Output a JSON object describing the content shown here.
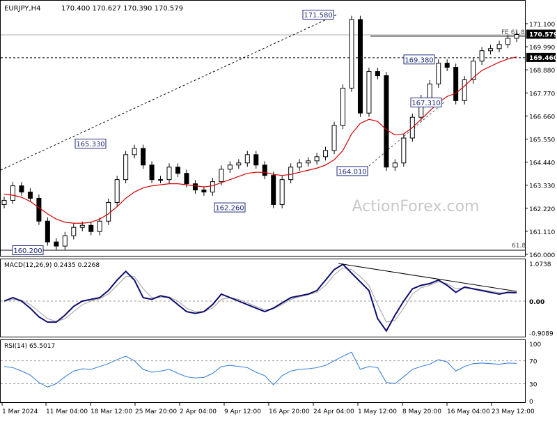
{
  "header": {
    "symbol": "EURJPY,H4",
    "ohlc": "170.400 170.627 170.390 170.579"
  },
  "watermark": "ActionForex.com",
  "colors": {
    "candle": "#000000",
    "ma": "#d40000",
    "macd": "#0b0b6e",
    "signal": "#a0a0a0",
    "rsi": "#2a79d6",
    "label_border": "#1e2a78",
    "grid_dash": "#9a9a9a"
  },
  "price_axis": [
    "171.100",
    "169.990",
    "169.460",
    "168.880",
    "167.770",
    "166.660",
    "165.550",
    "164.440",
    "163.330",
    "162.220",
    "161.110",
    "160.000"
  ],
  "current_price": "170.579",
  "level_169460": "169.460",
  "fe_label": "FE 61.8",
  "fib_label": "61.8",
  "macd_label": "MACD(12,26,9) 0.2435 0.2268",
  "macd_axis": [
    "1.0738",
    "0.00",
    "-0.9089"
  ],
  "rsi_label": "RSI(14) 65.5017",
  "rsi_axis": [
    "100",
    "70",
    "30",
    "0"
  ],
  "x_axis": [
    "1 Mar 2024",
    "11 Mar 04:00",
    "18 Mar 12:00",
    "25 Mar 20:00",
    "2 Apr 04:00",
    "9 Apr 12:00",
    "16 Apr 20:00",
    "24 Apr 04:00",
    "1 May 12:00",
    "8 May 20:00",
    "16 May 04:00",
    "23 May 12:00"
  ],
  "annotations": [
    "171.580",
    "169.380",
    "167.310",
    "165.330",
    "164.010",
    "162.260",
    "160.200"
  ],
  "chart_data": [
    {
      "type": "candlestick",
      "title": "EURJPY,H4",
      "ylim": [
        160.0,
        171.6
      ],
      "y_ticks": [
        171.1,
        169.99,
        168.88,
        167.77,
        166.66,
        165.55,
        164.44,
        163.33,
        162.22,
        161.11,
        160.0
      ],
      "x_ticks": [
        "1 Mar 2024",
        "11 Mar 04:00",
        "18 Mar 12:00",
        "25 Mar 20:00",
        "2 Apr 04:00",
        "9 Apr 12:00",
        "16 Apr 20:00",
        "24 Apr 04:00",
        "1 May 12:00",
        "8 May 20:00",
        "16 May 04:00",
        "23 May 12:00"
      ],
      "series": [
        {
          "name": "close",
          "values": [
            162.6,
            163.3,
            163.0,
            162.7,
            161.6,
            160.6,
            160.4,
            160.9,
            161.3,
            161.4,
            161.1,
            161.6,
            162.5,
            163.6,
            164.8,
            165.1,
            164.3,
            163.6,
            163.6,
            164.2,
            163.9,
            163.4,
            163.1,
            163.0,
            163.5,
            164.1,
            164.3,
            164.4,
            164.8,
            164.3,
            163.8,
            162.4,
            163.6,
            164.2,
            164.4,
            164.5,
            164.7,
            165.0,
            166.2,
            168.0,
            171.3,
            166.8,
            168.8,
            168.6,
            164.2,
            164.4,
            165.6,
            166.6,
            167.5,
            168.2,
            169.2,
            169.0,
            167.4,
            168.4,
            169.3,
            169.8,
            169.9,
            170.1,
            170.4,
            170.58
          ]
        },
        {
          "name": "moving average",
          "values": [
            162.9,
            162.85,
            162.75,
            162.55,
            162.25,
            161.95,
            161.7,
            161.55,
            161.5,
            161.5,
            161.55,
            161.7,
            161.95,
            162.3,
            162.7,
            163.0,
            163.2,
            163.3,
            163.35,
            163.4,
            163.4,
            163.35,
            163.3,
            163.25,
            163.3,
            163.45,
            163.6,
            163.75,
            163.9,
            163.95,
            163.95,
            163.85,
            163.8,
            163.85,
            163.95,
            164.05,
            164.15,
            164.3,
            164.55,
            165.0,
            165.8,
            166.3,
            166.5,
            166.4,
            166.0,
            165.75,
            165.8,
            166.1,
            166.5,
            166.9,
            167.3,
            167.6,
            167.75,
            168.1,
            168.5,
            168.85,
            169.05,
            169.25,
            169.4,
            169.5
          ]
        }
      ],
      "annotations": [
        {
          "label": "171.580",
          "value": 171.58
        },
        {
          "label": "169.380",
          "value": 169.38
        },
        {
          "label": "167.310",
          "value": 167.31
        },
        {
          "label": "165.330",
          "value": 165.33
        },
        {
          "label": "164.010",
          "value": 164.01
        },
        {
          "label": "162.260",
          "value": 162.26
        },
        {
          "label": "160.200",
          "value": 160.2
        }
      ],
      "levels": [
        {
          "value": 170.579,
          "label": "170.579"
        },
        {
          "value": 169.46,
          "label": "169.460"
        },
        {
          "value": 170.5,
          "label": "FE 61.8"
        },
        {
          "value": 160.2,
          "label": "61.8"
        }
      ]
    },
    {
      "type": "line",
      "title": "MACD(12,26,9) 0.2435 0.2268",
      "ylim": [
        -0.9089,
        1.0738
      ],
      "series": [
        {
          "name": "MACD",
          "values": [
            0.0,
            0.1,
            0.0,
            -0.2,
            -0.45,
            -0.6,
            -0.6,
            -0.4,
            -0.15,
            0.0,
            0.05,
            0.1,
            0.3,
            0.6,
            0.85,
            0.6,
            0.1,
            0.05,
            0.15,
            0.1,
            -0.1,
            -0.3,
            -0.35,
            -0.3,
            -0.1,
            0.2,
            0.1,
            0.0,
            -0.1,
            -0.2,
            -0.3,
            -0.2,
            -0.05,
            0.1,
            0.15,
            0.2,
            0.3,
            0.6,
            0.9,
            1.05,
            0.8,
            0.55,
            0.3,
            -0.5,
            -0.85,
            -0.4,
            0.0,
            0.35,
            0.45,
            0.5,
            0.6,
            0.45,
            0.25,
            0.4,
            0.35,
            0.3,
            0.25,
            0.2,
            0.25,
            0.24
          ]
        },
        {
          "name": "Signal",
          "values": [
            0.0,
            0.05,
            0.03,
            -0.1,
            -0.3,
            -0.5,
            -0.58,
            -0.5,
            -0.3,
            -0.1,
            0.0,
            0.07,
            0.2,
            0.45,
            0.7,
            0.7,
            0.35,
            0.1,
            0.1,
            0.12,
            0.0,
            -0.2,
            -0.3,
            -0.3,
            -0.2,
            0.05,
            0.1,
            0.05,
            -0.05,
            -0.15,
            -0.25,
            -0.22,
            -0.1,
            0.05,
            0.12,
            0.18,
            0.25,
            0.45,
            0.75,
            0.95,
            0.9,
            0.7,
            0.45,
            -0.1,
            -0.6,
            -0.55,
            -0.2,
            0.2,
            0.38,
            0.45,
            0.55,
            0.5,
            0.35,
            0.38,
            0.36,
            0.32,
            0.28,
            0.24,
            0.23,
            0.23
          ]
        }
      ]
    },
    {
      "type": "line",
      "title": "RSI(14) 65.5017",
      "ylim": [
        0,
        100
      ],
      "series": [
        {
          "name": "RSI",
          "values": [
            60,
            58,
            52,
            45,
            32,
            24,
            30,
            42,
            52,
            56,
            55,
            60,
            65,
            72,
            78,
            70,
            55,
            50,
            52,
            55,
            48,
            42,
            40,
            41,
            48,
            60,
            62,
            60,
            58,
            50,
            44,
            28,
            44,
            52,
            55,
            56,
            58,
            62,
            70,
            78,
            85,
            55,
            60,
            58,
            32,
            30,
            42,
            55,
            60,
            64,
            72,
            68,
            52,
            60,
            65,
            66,
            65,
            64,
            66,
            65.5
          ]
        }
      ],
      "levels": [
        70,
        30
      ]
    }
  ]
}
